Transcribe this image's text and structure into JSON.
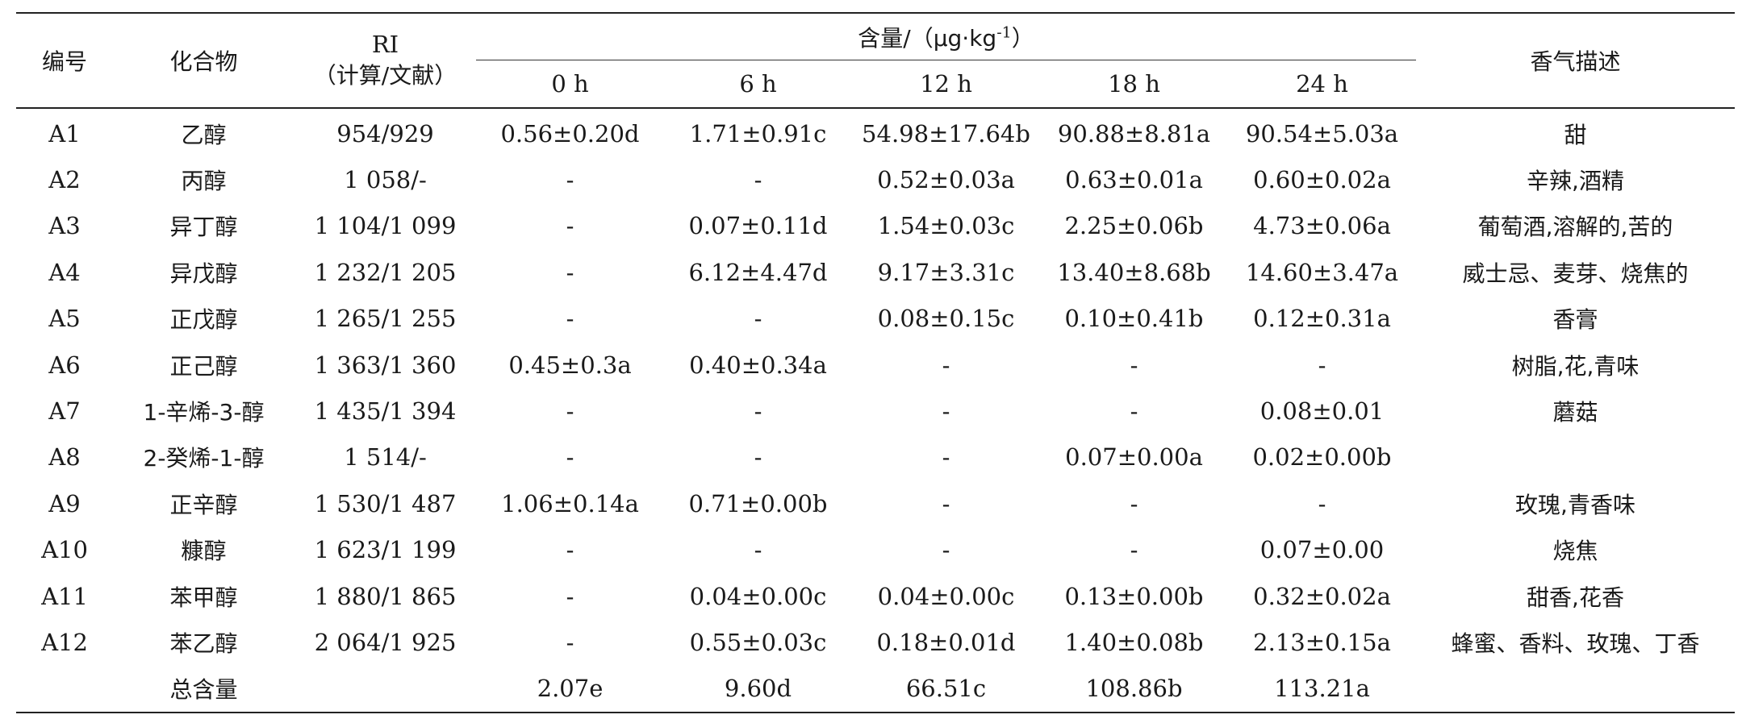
{
  "table": {
    "headers": {
      "id": "编号",
      "compound": "化合物",
      "ri_line1": "RI",
      "ri_line2": "（计算/文献）",
      "content_main": "含量/（μg·kg",
      "content_sup": "-1",
      "content_close": "）",
      "aroma": "香气描述",
      "times": [
        "0 h",
        "6 h",
        "12 h",
        "18 h",
        "24 h"
      ]
    },
    "rows": [
      {
        "id": "A1",
        "name": "乙醇",
        "ri": "954/929",
        "v": [
          "0.56±0.20d",
          "1.71±0.91c",
          "54.98±17.64b",
          "90.88±8.81a",
          "90.54±5.03a"
        ],
        "desc": "甜"
      },
      {
        "id": "A2",
        "name": "丙醇",
        "ri": "1 058/-",
        "v": [
          "-",
          "-",
          "0.52±0.03a",
          "0.63±0.01a",
          "0.60±0.02a"
        ],
        "desc": "辛辣,酒精"
      },
      {
        "id": "A3",
        "name": "异丁醇",
        "ri": "1 104/1 099",
        "v": [
          "-",
          "0.07±0.11d",
          "1.54±0.03c",
          "2.25±0.06b",
          "4.73±0.06a"
        ],
        "desc": "葡萄酒,溶解的,苦的"
      },
      {
        "id": "A4",
        "name": "异戊醇",
        "ri": "1 232/1 205",
        "v": [
          "-",
          "6.12±4.47d",
          "9.17±3.31c",
          "13.40±8.68b",
          "14.60±3.47a"
        ],
        "desc": "威士忌、麦芽、烧焦的"
      },
      {
        "id": "A5",
        "name": "正戊醇",
        "ri": "1 265/1 255",
        "v": [
          "-",
          "-",
          "0.08±0.15c",
          "0.10±0.41b",
          "0.12±0.31a"
        ],
        "desc": "香膏"
      },
      {
        "id": "A6",
        "name": "正己醇",
        "ri": "1 363/1 360",
        "v": [
          "0.45±0.3a",
          "0.40±0.34a",
          "-",
          "-",
          "-"
        ],
        "desc": "树脂,花,青味"
      },
      {
        "id": "A7",
        "name": "1-辛烯-3-醇",
        "ri": "1 435/1 394",
        "v": [
          "-",
          "-",
          "-",
          "-",
          "0.08±0.01"
        ],
        "desc": "蘑菇"
      },
      {
        "id": "A8",
        "name": "2-癸烯-1-醇",
        "ri": "1 514/-",
        "v": [
          "-",
          "-",
          "-",
          "0.07±0.00a",
          "0.02±0.00b"
        ],
        "desc": ""
      },
      {
        "id": "A9",
        "name": "正辛醇",
        "ri": "1 530/1 487",
        "v": [
          "1.06±0.14a",
          "0.71±0.00b",
          "-",
          "-",
          "-"
        ],
        "desc": "玫瑰,青香味"
      },
      {
        "id": "A10",
        "name": "糠醇",
        "ri": "1 623/1 199",
        "v": [
          "-",
          "-",
          "-",
          "-",
          "0.07±0.00"
        ],
        "desc": "烧焦"
      },
      {
        "id": "A11",
        "name": "苯甲醇",
        "ri": "1 880/1 865",
        "v": [
          "-",
          "0.04±0.00c",
          "0.04±0.00c",
          "0.13±0.00b",
          "0.32±0.02a"
        ],
        "desc": "甜香,花香"
      },
      {
        "id": "A12",
        "name": "苯乙醇",
        "ri": "2 064/1 925",
        "v": [
          "-",
          "0.55±0.03c",
          "0.18±0.01d",
          "1.40±0.08b",
          "2.13±0.15a"
        ],
        "desc": "蜂蜜、香料、玫瑰、丁香"
      }
    ],
    "total": {
      "label": "总含量",
      "v": [
        "2.07e",
        "9.60d",
        "66.51c",
        "108.86b",
        "113.21a"
      ]
    }
  }
}
